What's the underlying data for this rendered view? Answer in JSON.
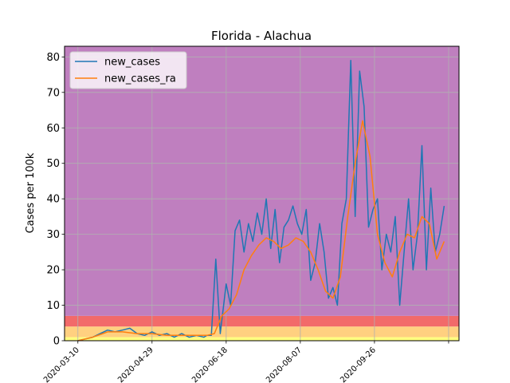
{
  "chart_data": {
    "type": "line",
    "title": "Florida - Alachua",
    "xlabel": "",
    "ylabel": "Cases per 100k",
    "x_start": "2020-03-01",
    "x_end": "2020-11-22",
    "xlim": [
      "2020-03-01",
      "2020-11-22"
    ],
    "ylim": [
      0,
      83
    ],
    "x_ticks": [
      "2020-03-10",
      "2020-04-29",
      "2020-06-18",
      "2020-08-07",
      "2020-09-26",
      "2020-11-15"
    ],
    "x_tick_labels": [
      "2020-03-10",
      "2020-04-29",
      "2020-06-18",
      "2020-08-07",
      "2020-09-26",
      ""
    ],
    "y_ticks": [
      0,
      10,
      20,
      30,
      40,
      50,
      60,
      70,
      80
    ],
    "grid": true,
    "legend_position": "top-left",
    "background_bands": [
      {
        "from": 0,
        "to": 1,
        "color": "#ffff80"
      },
      {
        "from": 1,
        "to": 4,
        "color": "#ffd080"
      },
      {
        "from": 4,
        "to": 7,
        "color": "#f26a6a"
      },
      {
        "from": 7,
        "to": 83,
        "color": "#bf7fbf"
      }
    ],
    "series": [
      {
        "name": "new_cases",
        "color": "#1f77b4",
        "x": [
          "2020-03-10",
          "2020-03-15",
          "2020-03-20",
          "2020-03-25",
          "2020-03-30",
          "2020-04-04",
          "2020-04-09",
          "2020-04-14",
          "2020-04-19",
          "2020-04-24",
          "2020-04-29",
          "2020-05-04",
          "2020-05-09",
          "2020-05-14",
          "2020-05-19",
          "2020-05-24",
          "2020-05-29",
          "2020-06-03",
          "2020-06-05",
          "2020-06-08",
          "2020-06-11",
          "2020-06-14",
          "2020-06-18",
          "2020-06-21",
          "2020-06-24",
          "2020-06-27",
          "2020-06-30",
          "2020-07-03",
          "2020-07-06",
          "2020-07-09",
          "2020-07-12",
          "2020-07-15",
          "2020-07-18",
          "2020-07-21",
          "2020-07-24",
          "2020-07-27",
          "2020-07-30",
          "2020-08-02",
          "2020-08-05",
          "2020-08-08",
          "2020-08-11",
          "2020-08-14",
          "2020-08-17",
          "2020-08-20",
          "2020-08-23",
          "2020-08-26",
          "2020-08-29",
          "2020-09-01",
          "2020-09-04",
          "2020-09-07",
          "2020-09-10",
          "2020-09-13",
          "2020-09-16",
          "2020-09-19",
          "2020-09-22",
          "2020-09-25",
          "2020-09-28",
          "2020-10-01",
          "2020-10-04",
          "2020-10-07",
          "2020-10-10",
          "2020-10-13",
          "2020-10-16",
          "2020-10-19",
          "2020-10-22",
          "2020-10-25",
          "2020-10-28",
          "2020-10-31",
          "2020-11-03",
          "2020-11-06",
          "2020-11-09",
          "2020-11-12"
        ],
        "y": [
          0,
          0.5,
          1,
          2,
          3,
          2.5,
          3,
          3.5,
          2,
          1.5,
          2.5,
          1.5,
          2,
          1,
          2,
          1,
          1.5,
          1,
          1.5,
          1.5,
          23,
          2,
          16,
          10,
          31,
          34,
          25,
          33,
          28,
          36,
          30,
          40,
          26,
          37,
          22,
          32,
          34,
          38,
          33,
          30,
          37,
          17,
          22,
          33,
          25,
          12,
          15,
          10,
          33,
          40,
          79,
          35,
          76,
          66,
          32,
          37,
          40,
          20,
          30,
          25,
          35,
          10,
          25,
          40,
          20,
          30,
          55,
          20,
          43,
          25,
          30,
          38
        ]
      },
      {
        "name": "new_cases_ra",
        "color": "#ff7f0e",
        "x": [
          "2020-03-10",
          "2020-03-20",
          "2020-03-30",
          "2020-04-09",
          "2020-04-19",
          "2020-04-29",
          "2020-05-09",
          "2020-05-19",
          "2020-05-29",
          "2020-06-05",
          "2020-06-10",
          "2020-06-15",
          "2020-06-20",
          "2020-06-25",
          "2020-06-30",
          "2020-07-05",
          "2020-07-10",
          "2020-07-15",
          "2020-07-20",
          "2020-07-25",
          "2020-07-30",
          "2020-08-04",
          "2020-08-09",
          "2020-08-14",
          "2020-08-19",
          "2020-08-24",
          "2020-08-29",
          "2020-09-03",
          "2020-09-08",
          "2020-09-13",
          "2020-09-18",
          "2020-09-23",
          "2020-09-28",
          "2020-10-03",
          "2020-10-08",
          "2020-10-13",
          "2020-10-18",
          "2020-10-23",
          "2020-10-28",
          "2020-11-02",
          "2020-11-07",
          "2020-11-12"
        ],
        "y": [
          0,
          1,
          2.5,
          2.5,
          2,
          2,
          1.5,
          1.5,
          1.5,
          1.5,
          2,
          7,
          9,
          13,
          20,
          24,
          27,
          29,
          28,
          26,
          27,
          29,
          28,
          25,
          20,
          14,
          12,
          18,
          35,
          50,
          62,
          52,
          30,
          22,
          18,
          25,
          30,
          29,
          35,
          33,
          23,
          28
        ]
      }
    ]
  }
}
